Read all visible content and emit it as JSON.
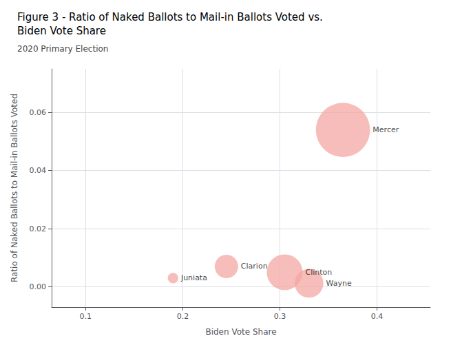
{
  "chart_data": {
    "type": "scatter",
    "title": "Figure 3 - Ratio of Naked Ballots to Mail-in Ballots Voted vs.\nBiden Vote Share",
    "subtitle": "2020 Primary Election",
    "xlabel": "Biden Vote Share",
    "ylabel": "Ratio of Naked Ballots to Mail-in Ballots Voted",
    "labels": [
      "Mercer",
      "Clarion",
      "Juniata",
      "Clinton",
      "Wayne"
    ],
    "x": [
      0.365,
      0.245,
      0.19,
      0.305,
      0.33
    ],
    "values": [
      0.054,
      0.007,
      0.003,
      0.005,
      0.0012
    ],
    "sizes": [
      3200,
      600,
      120,
      1400,
      900
    ],
    "color": "#f4a7a3",
    "xlim": [
      0.065,
      0.455
    ],
    "ylim": [
      -0.007,
      0.075
    ],
    "xticks": [
      0.1,
      0.2,
      0.3,
      0.4
    ],
    "yticks": [
      {
        "value": 0,
        "label": "0.00"
      },
      {
        "value": 0.02,
        "label": "0.02"
      },
      {
        "value": 0.04,
        "label": "0.04"
      },
      {
        "value": 0.06,
        "label": "0.06"
      }
    ],
    "grid": true
  }
}
